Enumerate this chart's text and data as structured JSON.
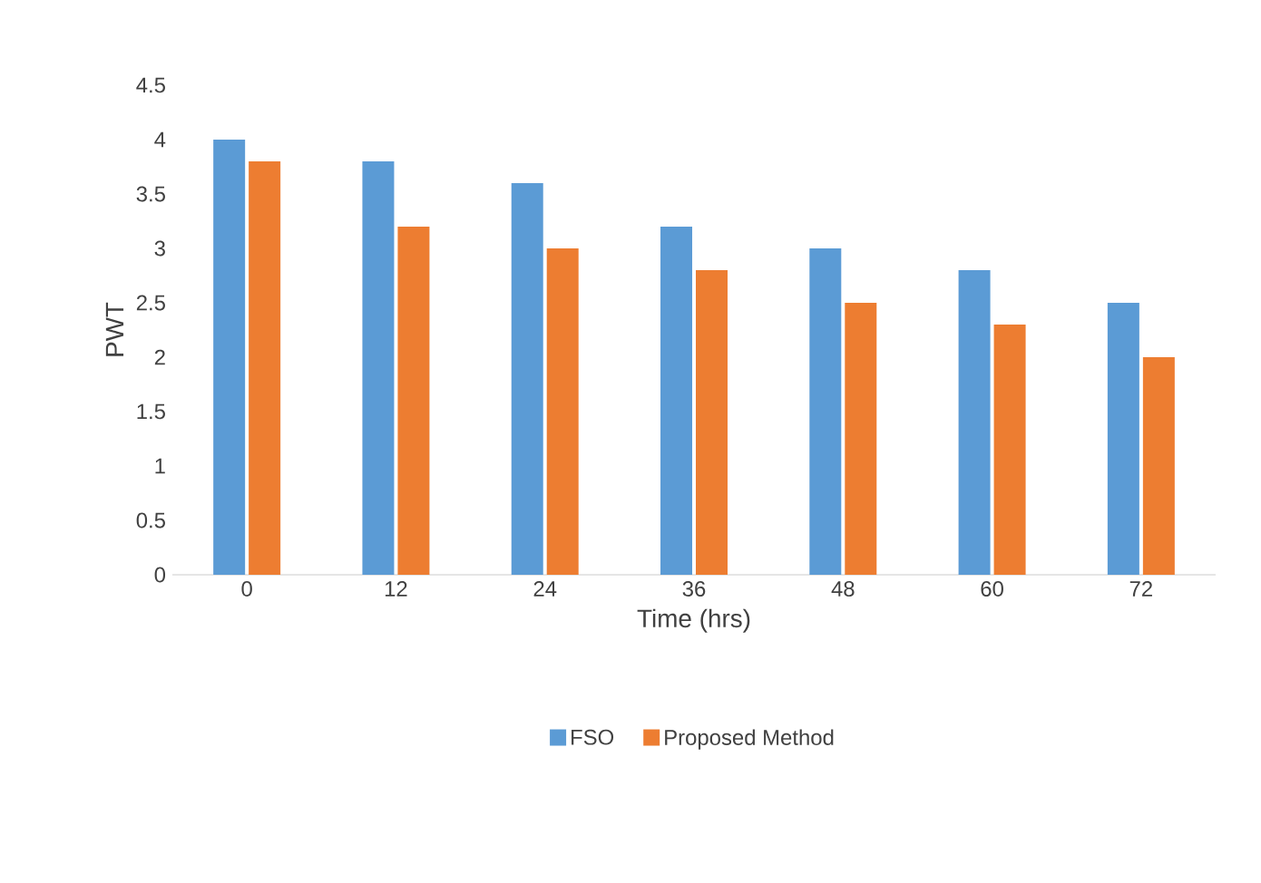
{
  "chart_data": {
    "type": "bar",
    "xlabel": "Time (hrs)",
    "ylabel": "PWT",
    "categories": [
      "0",
      "12",
      "24",
      "36",
      "48",
      "60",
      "72"
    ],
    "series": [
      {
        "name": "FSO",
        "color": "#5b9bd5",
        "values": [
          4,
          3.8,
          3.6,
          3.2,
          3,
          2.8,
          2.5
        ]
      },
      {
        "name": "Proposed Method",
        "color": "#ed7d31",
        "values": [
          3.8,
          3.2,
          3,
          2.8,
          2.5,
          2.3,
          2
        ]
      }
    ],
    "ylim": [
      0,
      4.5
    ],
    "yticks": [
      0,
      0.5,
      1,
      1.5,
      2,
      2.5,
      3,
      3.5,
      4,
      4.5
    ],
    "grid": false,
    "legend": "bottom"
  }
}
